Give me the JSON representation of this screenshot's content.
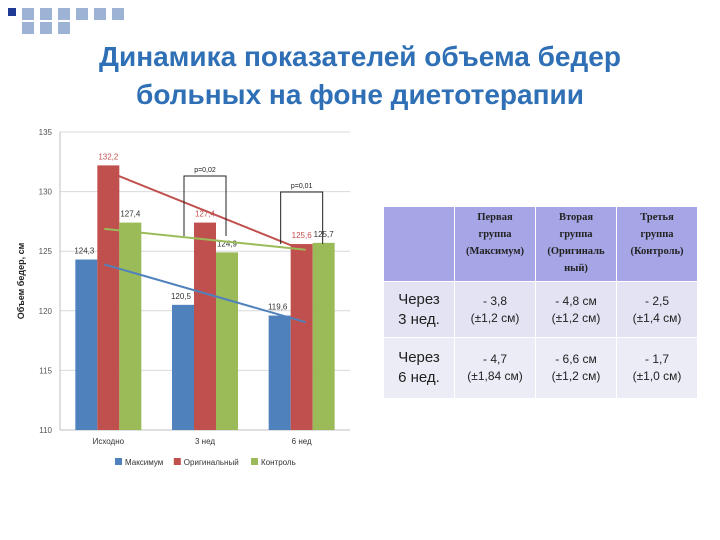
{
  "slide": {
    "title_line1": "Динамика показателей объема бедер",
    "title_line2": "больных на фоне диетотерапии"
  },
  "chart_data": {
    "type": "bar",
    "categories": [
      "Исходно",
      "3 нед",
      "6 нед"
    ],
    "series": [
      {
        "name": "Максимум",
        "values": [
          124.3,
          120.5,
          119.6
        ],
        "labels": [
          "124,3",
          "120,5",
          "119,6"
        ],
        "color": "#4f81bd"
      },
      {
        "name": "Оригинальный",
        "values": [
          132.2,
          127.4,
          125.6
        ],
        "labels": [
          "132,2",
          "127,4",
          "125,6"
        ],
        "color": "#c0504d"
      },
      {
        "name": "Контроль",
        "values": [
          127.4,
          124.9,
          125.7
        ],
        "labels": [
          "127,4",
          "124,9",
          "125,7"
        ],
        "color": "#9bbb59"
      }
    ],
    "trendlines": true,
    "ylabel": "Объем бедер, см",
    "xlabel": "",
    "ylim": [
      110,
      135
    ],
    "yticks": [
      110,
      115,
      120,
      125,
      130,
      135
    ],
    "grid": true,
    "legend_position": "bottom",
    "annotations": [
      "p=0,02",
      "p=0,01"
    ]
  },
  "table": {
    "headers": [
      "",
      "Первая группа (Максимум)",
      "Вторая группа (Оригинальный)",
      "Третья группа (Контроль)"
    ],
    "header_lines": [
      [],
      [
        "Первая",
        "группа",
        "(Максимум)"
      ],
      [
        "Вторая",
        "группа",
        "(Оригиналь",
        "ный)"
      ],
      [
        "Третья",
        "группа",
        "(Контроль)"
      ]
    ],
    "rows": [
      {
        "label_lines": [
          "Через",
          "3 нед."
        ],
        "cells": [
          [
            "- 3,8",
            "(±1,2 см)"
          ],
          [
            "- 4,8 см",
            "(±1,2 см)"
          ],
          [
            "- 2,5",
            "(±1,4  см)"
          ]
        ]
      },
      {
        "label_lines": [
          "Через",
          "6 нед."
        ],
        "cells": [
          [
            "- 4,7",
            "(±1,84 см)"
          ],
          [
            "- 6,6 см",
            "(±1,2 см)"
          ],
          [
            "- 1,7",
            "(±1,0  см)"
          ]
        ]
      }
    ]
  },
  "colors": {
    "accent": "#2f6fb5",
    "table_header": "#a6a6e6",
    "table_row": "#e3e3f3",
    "deco_dark": "#1f3a93",
    "deco_light": "#9db3d6"
  }
}
